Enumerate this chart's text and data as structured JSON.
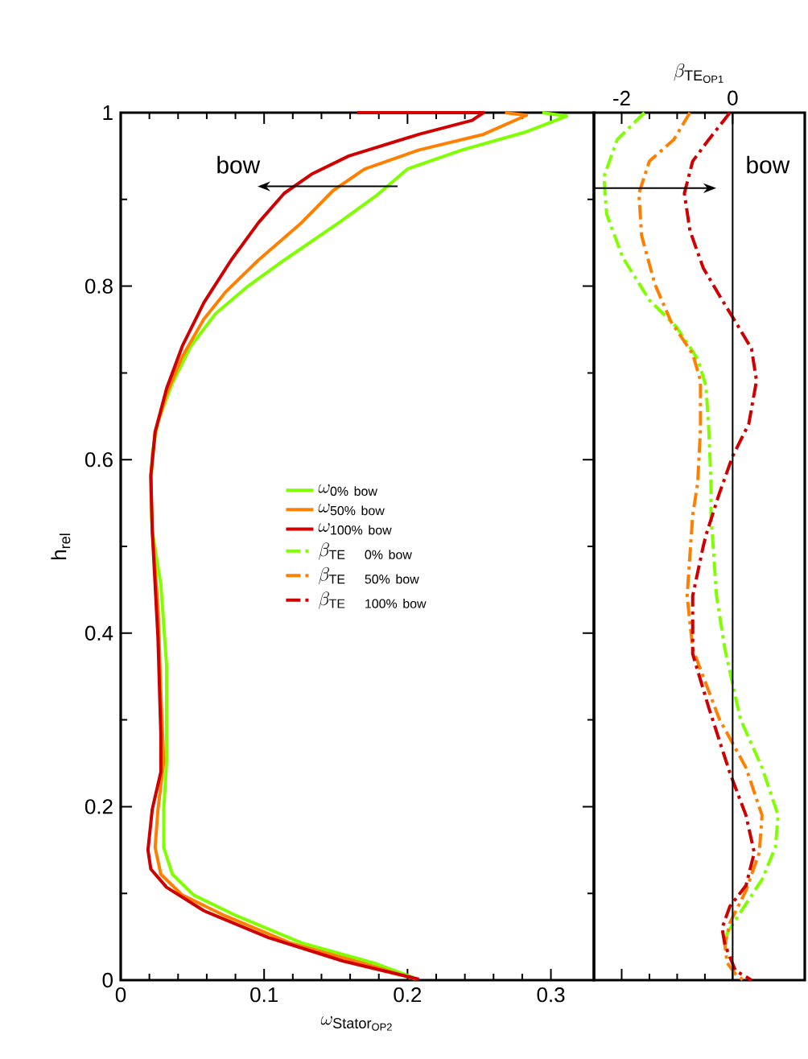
{
  "chart_data": [
    {
      "type": "line",
      "xlabel": "\\omega_{\\mathrm{Stator}_{\\mathrm{OP2}}}",
      "ylabel": "h$_{rel}$",
      "xlim": [
        0,
        0.33
      ],
      "ylim": [
        0,
        1
      ],
      "xticks": [
        0,
        0.1,
        0.2,
        0.3
      ],
      "yticks": [
        0,
        0.2,
        0.4,
        0.6,
        0.8,
        1
      ],
      "legend": "center",
      "annotations": [
        "bow"
      ],
      "series": [
        {
          "name": "\\omega_{\\mathrm{0\\%\\ bow}}",
          "color": "#80ff00",
          "line_style": "solid",
          "x": [
            0.294,
            0.311,
            0.283,
            0.238,
            0.2,
            0.178,
            0.152,
            0.114,
            0.088,
            0.066,
            0.049,
            0.036,
            0.026,
            0.022,
            0.021,
            0.022,
            0.028,
            0.032,
            0.032,
            0.03,
            0.03,
            0.036,
            0.051,
            0.081,
            0.126,
            0.178,
            0.204
          ],
          "values": [
            1.0,
            0.996,
            0.978,
            0.957,
            0.935,
            0.904,
            0.873,
            0.83,
            0.799,
            0.768,
            0.731,
            0.688,
            0.644,
            0.607,
            0.564,
            0.518,
            0.456,
            0.363,
            0.252,
            0.197,
            0.153,
            0.122,
            0.098,
            0.074,
            0.043,
            0.019,
            0.003
          ]
        },
        {
          "name": "\\omega_{\\mathrm{50\\%\\ bow}}",
          "color": "#ff8000",
          "line_style": "solid",
          "x": [
            0.268,
            0.283,
            0.253,
            0.208,
            0.17,
            0.148,
            0.126,
            0.096,
            0.073,
            0.058,
            0.043,
            0.032,
            0.024,
            0.021,
            0.022,
            0.026,
            0.028,
            0.03,
            0.026,
            0.024,
            0.028,
            0.043,
            0.073,
            0.118,
            0.17,
            0.206
          ],
          "values": [
            1.0,
            0.997,
            0.975,
            0.957,
            0.935,
            0.91,
            0.873,
            0.83,
            0.793,
            0.762,
            0.719,
            0.676,
            0.632,
            0.58,
            0.518,
            0.43,
            0.332,
            0.252,
            0.197,
            0.153,
            0.122,
            0.098,
            0.074,
            0.043,
            0.019,
            0.001
          ]
        },
        {
          "name": "\\omega_{\\mathrm{100\\%\\ bow}}",
          "color": "#d00000",
          "line_style": "solid",
          "x": [
            0.165,
            0.253,
            0.245,
            0.208,
            0.159,
            0.133,
            0.114,
            0.096,
            0.077,
            0.058,
            0.043,
            0.032,
            0.024,
            0.021,
            0.022,
            0.026,
            0.028,
            0.028,
            0.022,
            0.019,
            0.021,
            0.032,
            0.058,
            0.103,
            0.155,
            0.208
          ],
          "values": [
            1.0,
            1.0,
            0.991,
            0.975,
            0.95,
            0.929,
            0.907,
            0.873,
            0.83,
            0.781,
            0.731,
            0.682,
            0.632,
            0.582,
            0.518,
            0.394,
            0.283,
            0.24,
            0.197,
            0.15,
            0.128,
            0.107,
            0.08,
            0.049,
            0.022,
            0.001
          ]
        }
      ]
    },
    {
      "type": "line",
      "xlabel": "\\beta_{\\mathrm{TE}_{\\mathrm{OP1}}}",
      "xlim": [
        -2.5,
        1.3
      ],
      "ylim": [
        0,
        1
      ],
      "xticks": [
        -2,
        0
      ],
      "tick_labels": "x",
      "ref_lines": [
        {
          "axis": "x",
          "value": 0
        }
      ],
      "annotations": [
        "bow"
      ],
      "series": [
        {
          "name": "\\beta_{\\mathrm{TE}\\quad\\mathrm{0\\%\\ bow}}",
          "color": "#80ff00",
          "line_style": "dashdot",
          "x": [
            -1.59,
            -2.08,
            -2.32,
            -2.27,
            -1.98,
            -1.5,
            -1.01,
            -0.63,
            -0.48,
            -0.43,
            -0.39,
            -0.39,
            -0.29,
            -0.14,
            0.14,
            0.53,
            0.82,
            0.77,
            0.53,
            0.14,
            -0.1,
            -0.14
          ],
          "values": [
            1.0,
            0.969,
            0.926,
            0.883,
            0.833,
            0.784,
            0.753,
            0.716,
            0.685,
            0.635,
            0.573,
            0.536,
            0.443,
            0.382,
            0.301,
            0.245,
            0.19,
            0.153,
            0.116,
            0.078,
            0.054,
            0.035
          ]
        },
        {
          "name": "\\beta_{\\mathrm{TE}\\quad\\mathrm{50\\%\\ bow}}",
          "color": "#ff8000",
          "line_style": "dashdot",
          "x": [
            -0.77,
            -1.06,
            -1.5,
            -1.69,
            -1.64,
            -1.4,
            -1.11,
            -0.72,
            -0.58,
            -0.58,
            -0.63,
            -0.72,
            -0.82,
            -0.72,
            -0.24,
            0.24,
            0.53,
            0.48,
            0.24,
            -0.05,
            -0.14,
            -0.1,
            0.05,
            0.19
          ],
          "values": [
            1.0,
            0.969,
            0.944,
            0.907,
            0.858,
            0.802,
            0.759,
            0.722,
            0.691,
            0.635,
            0.573,
            0.536,
            0.443,
            0.382,
            0.301,
            0.245,
            0.19,
            0.147,
            0.103,
            0.066,
            0.041,
            0.02,
            0.007,
            0.0
          ]
        },
        {
          "name": "\\beta_{\\mathrm{TE}\\quad\\mathrm{100\\%\\ bow}}",
          "color": "#d00000",
          "line_style": "dashdot",
          "x": [
            -0.05,
            -0.43,
            -0.72,
            -0.87,
            -0.77,
            -0.53,
            -0.19,
            0.05,
            0.34,
            0.43,
            0.29,
            0.0,
            -0.24,
            -0.48,
            -0.53,
            -0.72,
            -0.72,
            -0.43,
            -0.05,
            0.24,
            0.39,
            0.24,
            -0.05,
            -0.19,
            -0.14,
            0.05,
            0.34
          ],
          "values": [
            1.0,
            0.969,
            0.944,
            0.907,
            0.864,
            0.821,
            0.784,
            0.759,
            0.728,
            0.691,
            0.641,
            0.604,
            0.561,
            0.513,
            0.5,
            0.443,
            0.376,
            0.314,
            0.239,
            0.19,
            0.147,
            0.109,
            0.085,
            0.06,
            0.041,
            0.011,
            0.0
          ]
        }
      ]
    }
  ]
}
